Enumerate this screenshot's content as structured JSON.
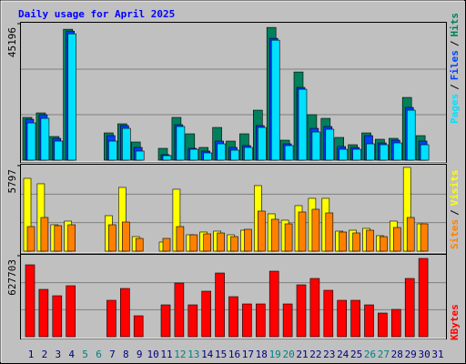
{
  "chart_data": [
    {
      "type": "bar",
      "title": "Daily usage for April 2025",
      "ylim": [
        0,
        45196
      ],
      "yticks": [
        45196
      ],
      "series": [
        {
          "name": "Hits",
          "color": "#00805c",
          "values": [
            14150,
            15650,
            7830,
            43344,
            0,
            0,
            9030,
            12040,
            6020,
            0,
            3913,
            14150,
            8730,
            4214,
            10836,
            6320,
            8730,
            16555,
            43946,
            6622,
            29197,
            15050,
            13846,
            7525,
            5117,
            9030,
            6923,
            7224,
            20769,
            8127,
            0
          ]
        },
        {
          "name": "Files",
          "color": "#0040ff",
          "values": [
            13545,
            15050,
            7220,
            42742,
            0,
            0,
            8130,
            11440,
            4214,
            0,
            1806,
            11740,
            3913,
            3010,
            6320,
            4214,
            4816,
            11440,
            40334,
            5418,
            24080,
            10535,
            11137,
            4515,
            4214,
            8130,
            5719,
            6622,
            17458,
            6320,
            0
          ]
        },
        {
          "name": "Pages",
          "color": "#00e0ff",
          "values": [
            12340,
            13850,
            6320,
            41840,
            0,
            0,
            6320,
            10535,
            3010,
            0,
            1505,
            11140,
            3612,
            2408,
            5418,
            3311,
            4214,
            10836,
            39732,
            4816,
            23478,
            9331,
            10234,
            3612,
            3612,
            5418,
            5117,
            5719,
            16555,
            5117,
            0
          ]
        }
      ]
    },
    {
      "type": "bar",
      "ylim": [
        0,
        5797
      ],
      "yticks": [
        5797
      ],
      "series": [
        {
          "name": "Visits",
          "color": "#ffff00",
          "values": [
            4934,
            4566,
            1789,
            2036,
            0,
            0,
            2406,
            4319,
            987,
            0,
            617,
            4196,
            1111,
            1296,
            1357,
            1111,
            1419,
            4442,
            2530,
            2098,
            3085,
            3579,
            3579,
            1357,
            1419,
            1543,
            1049,
            2036,
            5677,
            1851,
            0
          ]
        },
        {
          "name": "Sites",
          "color": "#ff8000",
          "values": [
            1666,
            2283,
            1728,
            1789,
            0,
            0,
            1789,
            1974,
            864,
            0,
            864,
            1666,
            1111,
            1172,
            1234,
            987,
            1481,
            2715,
            2160,
            1851,
            2653,
            2838,
            2591,
            1296,
            1234,
            1419,
            987,
            1604,
            2283,
            1851,
            0
          ]
        }
      ]
    },
    {
      "type": "bar",
      "ylim": [
        0,
        627703
      ],
      "yticks": [
        627703
      ],
      "categories": [
        "1",
        "2",
        "3",
        "4",
        "5",
        "6",
        "7",
        "8",
        "9",
        "10",
        "11",
        "12",
        "13",
        "14",
        "15",
        "16",
        "17",
        "18",
        "19",
        "20",
        "21",
        "22",
        "23",
        "24",
        "25",
        "26",
        "27",
        "28",
        "29",
        "30",
        "31"
      ],
      "category_color": "#000080",
      "highlight_color": "#008080",
      "highlight": [
        4,
        5,
        11,
        12,
        18,
        19,
        25,
        26
      ],
      "series": [
        {
          "name": "KBytes",
          "color": "#ff0000",
          "values": [
            557200,
            366750,
            317380,
            394970,
            0,
            0,
            282120,
            373800,
            162220,
            0,
            246860,
            416130,
            246860,
            352650,
            493710,
            310330,
            253910,
            253910,
            507820,
            253910,
            402020,
            451390,
            359700,
            282120,
            282120,
            246860,
            183380,
            211590,
            451390,
            606540,
            0
          ]
        }
      ]
    }
  ],
  "separator": "/"
}
